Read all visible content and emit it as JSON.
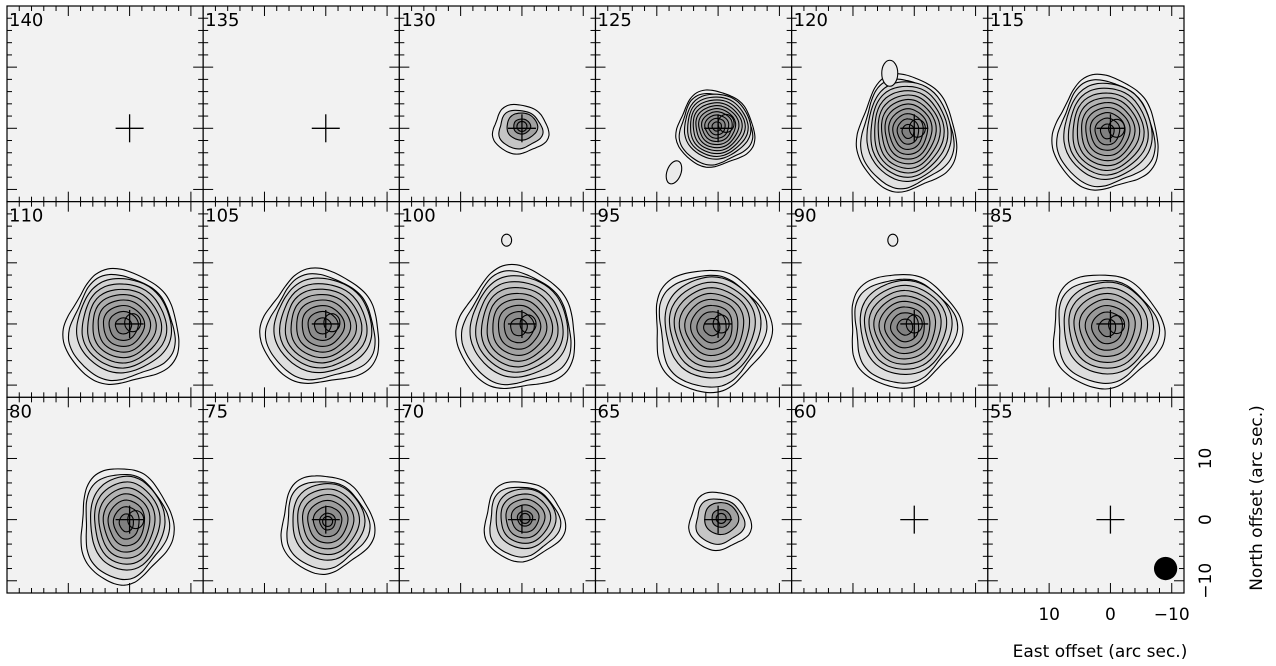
{
  "chart_data": {
    "type": "contour-channel-map",
    "grid": {
      "rows": 3,
      "cols": 6
    },
    "x_axis": {
      "label": "East offset (arc sec.)",
      "ticks": [
        {
          "value": 10,
          "label": "10"
        },
        {
          "value": 0,
          "label": "0"
        },
        {
          "value": -10,
          "label": "−10"
        }
      ],
      "range": [
        20,
        -12
      ],
      "minor_step": 2,
      "reversed": true
    },
    "y_axis": {
      "label": "North offset (arc sec.)",
      "ticks": [
        {
          "value": 10,
          "label": "10"
        },
        {
          "value": 0,
          "label": "0"
        },
        {
          "value": -10,
          "label": "−10"
        }
      ],
      "range": [
        -12,
        20
      ],
      "minor_step": 2
    },
    "beam": {
      "x": -9,
      "y": -8,
      "diameter": 3.8,
      "position": "bottom-right of last panel"
    },
    "panels": [
      {
        "label": "140",
        "levels": 0
      },
      {
        "label": "135",
        "levels": 0
      },
      {
        "label": "130",
        "levels": 4,
        "rx": 4.5,
        "ry": 4.0,
        "cx": 0,
        "cy": 0.3
      },
      {
        "label": "125",
        "levels": 12,
        "rx": 6.3,
        "ry": 6.2,
        "cx": 0.2,
        "cy": 0.3,
        "extra": "blob-lower-left"
      },
      {
        "label": "120",
        "levels": 12,
        "rx": 8.0,
        "ry": 9.5,
        "cx": 1.0,
        "cy": -0.5,
        "extra": "blob-upper"
      },
      {
        "label": "115",
        "levels": 11,
        "rx": 8.5,
        "ry": 9.3,
        "cx": 0.5,
        "cy": -0.5
      },
      {
        "label": "110",
        "levels": 10,
        "rx": 9.3,
        "ry": 9.3,
        "cx": 1.0,
        "cy": -0.3
      },
      {
        "label": "105",
        "levels": 10,
        "rx": 9.6,
        "ry": 9.3,
        "cx": 0.5,
        "cy": -0.3
      },
      {
        "label": "100",
        "levels": 10,
        "rx": 9.6,
        "ry": 10.0,
        "cx": 0.5,
        "cy": -0.5,
        "extra": "blob-upper-small"
      },
      {
        "label": "95",
        "levels": 10,
        "rx": 9.4,
        "ry": 10.0,
        "cx": 1.0,
        "cy": -0.5
      },
      {
        "label": "90",
        "levels": 10,
        "rx": 9.0,
        "ry": 9.3,
        "cx": 1.5,
        "cy": -0.5,
        "extra": "blob-upper-small"
      },
      {
        "label": "85",
        "levels": 9,
        "rx": 9.0,
        "ry": 9.3,
        "cx": 0.5,
        "cy": -0.6
      },
      {
        "label": "80",
        "levels": 9,
        "rx": 7.5,
        "ry": 9.5,
        "cx": 0.5,
        "cy": -0.5
      },
      {
        "label": "75",
        "levels": 8,
        "rx": 7.5,
        "ry": 8.0,
        "cx": -0.3,
        "cy": -0.3
      },
      {
        "label": "70",
        "levels": 7,
        "rx": 6.5,
        "ry": 6.5,
        "cx": -0.5,
        "cy": 0.2
      },
      {
        "label": "65",
        "levels": 4,
        "rx": 5.0,
        "ry": 4.7,
        "cx": -0.5,
        "cy": 0.2
      },
      {
        "label": "60",
        "levels": 0
      },
      {
        "label": "55",
        "levels": 0,
        "beam": true
      }
    ]
  }
}
